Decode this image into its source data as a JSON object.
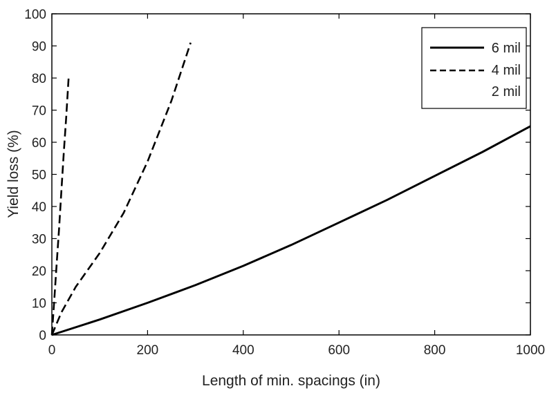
{
  "chart_data": {
    "type": "line",
    "title": "",
    "xlabel": "Length of min. spacings (in)",
    "ylabel": "Yield loss (%)",
    "xlim": [
      0,
      1000
    ],
    "ylim": [
      0,
      100
    ],
    "xticks": [
      0,
      200,
      400,
      600,
      800,
      1000
    ],
    "yticks": [
      0,
      10,
      20,
      30,
      40,
      50,
      60,
      70,
      80,
      90,
      100
    ],
    "grid": false,
    "legend_position": "top-right",
    "series": [
      {
        "name": "6 mil",
        "style": "solid",
        "x": [
          0,
          100,
          200,
          300,
          400,
          500,
          600,
          700,
          800,
          900,
          1000
        ],
        "y": [
          0,
          4.8,
          10,
          15.5,
          21.5,
          28,
          35,
          42,
          49.5,
          57,
          65
        ]
      },
      {
        "name": "4 mil",
        "style": "dashed",
        "x": [
          0,
          20,
          50,
          100,
          130,
          150,
          200,
          250,
          290
        ],
        "y": [
          0,
          7,
          15,
          25.5,
          33,
          38,
          54,
          73,
          91
        ]
      },
      {
        "name": "2 mil",
        "style": "dashed",
        "x": [
          0,
          5,
          10,
          15,
          20,
          25,
          30,
          35
        ],
        "y": [
          0,
          11,
          22,
          33,
          45,
          57,
          68,
          80
        ]
      }
    ]
  }
}
